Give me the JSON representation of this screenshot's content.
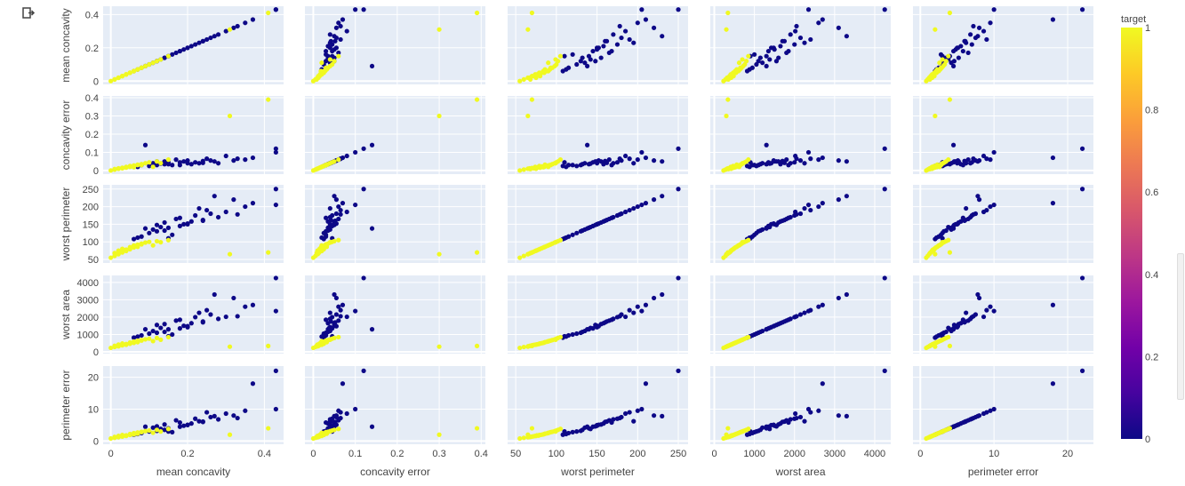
{
  "chart_data": {
    "type": "scatter_matrix",
    "dimensions": [
      "mean concavity",
      "concavity error",
      "worst perimeter",
      "worst area",
      "perimeter error"
    ],
    "axes": {
      "mean concavity": {
        "range": [
          -0.02,
          0.45
        ],
        "ticks": [
          0,
          0.2,
          0.4
        ],
        "tick_labels": [
          "0",
          "0.2",
          "0.4"
        ]
      },
      "concavity error": {
        "range": [
          -0.02,
          0.41
        ],
        "ticks": [
          0,
          0.1,
          0.2,
          0.3,
          0.4
        ],
        "tick_labels": [
          "0",
          "0.1",
          "0.2",
          "0.3",
          "0.4"
        ]
      },
      "worst perimeter": {
        "range": [
          40,
          262
        ],
        "ticks": [
          50,
          100,
          150,
          200,
          250
        ],
        "tick_labels": [
          "50",
          "100",
          "150",
          "200",
          "250"
        ]
      },
      "worst area": {
        "range": [
          -100,
          4400
        ],
        "ticks": [
          0,
          1000,
          2000,
          3000,
          4000
        ],
        "tick_labels": [
          "0",
          "1000",
          "2000",
          "3000",
          "4000"
        ]
      },
      "perimeter error": {
        "range": [
          -1,
          23.5
        ],
        "ticks": [
          0,
          10,
          20
        ],
        "tick_labels": [
          "0",
          "10",
          "20"
        ]
      }
    },
    "color_variable": "target",
    "colorbar": {
      "title": "target",
      "range": [
        0,
        1
      ],
      "ticks": [
        0,
        0.2,
        0.4,
        0.6,
        0.8,
        1
      ],
      "tick_labels": [
        "0",
        "0.2",
        "0.4",
        "0.6",
        "0.8",
        "1"
      ],
      "colorscale": [
        "#0d0887",
        "#46039f",
        "#7201a8",
        "#9c179e",
        "#bd3786",
        "#d8576b",
        "#ed7953",
        "#fb9f3a",
        "#fdca26",
        "#f0f921"
      ]
    },
    "series": [
      {
        "name": "target=0",
        "color": "#0d0887",
        "points": [
          [
            0.3,
            0.08,
            185,
            2020,
            8.6
          ],
          [
            0.24,
            0.052,
            160,
            1700,
            6.0
          ],
          [
            0.2,
            0.04,
            150,
            1420,
            5.0
          ],
          [
            0.18,
            0.045,
            145,
            1350,
            4.5
          ],
          [
            0.15,
            0.035,
            140,
            1300,
            4.0
          ],
          [
            0.12,
            0.03,
            130,
            1100,
            3.2
          ],
          [
            0.1,
            0.025,
            125,
            1050,
            3.0
          ],
          [
            0.14,
            0.05,
            155,
            1600,
            5.2
          ],
          [
            0.17,
            0.06,
            165,
            1800,
            6.5
          ],
          [
            0.22,
            0.045,
            175,
            2000,
            7.0
          ],
          [
            0.26,
            0.055,
            180,
            2150,
            7.5
          ],
          [
            0.28,
            0.04,
            170,
            1900,
            6.8
          ],
          [
            0.16,
            0.03,
            120,
            1000,
            2.8
          ],
          [
            0.08,
            0.03,
            115,
            950,
            2.5
          ],
          [
            0.11,
            0.04,
            135,
            1200,
            4.2
          ],
          [
            0.13,
            0.038,
            142,
            1380,
            3.8
          ],
          [
            0.19,
            0.05,
            150,
            1500,
            4.8
          ],
          [
            0.21,
            0.035,
            158,
            1650,
            5.5
          ],
          [
            0.25,
            0.065,
            190,
            2400,
            9.0
          ],
          [
            0.35,
            0.06,
            200,
            2600,
            9.5
          ],
          [
            0.43,
            0.12,
            250,
            4250,
            22.0
          ],
          [
            0.43,
            0.1,
            205,
            2350,
            10.0
          ],
          [
            0.37,
            0.07,
            210,
            2700,
            18.0
          ],
          [
            0.32,
            0.055,
            220,
            3100,
            8.0
          ],
          [
            0.09,
            0.14,
            138,
            1300,
            4.5
          ],
          [
            0.27,
            0.05,
            230,
            3300,
            7.8
          ],
          [
            0.23,
            0.04,
            195,
            2250,
            6.2
          ],
          [
            0.15,
            0.045,
            110,
            900,
            3.0
          ],
          [
            0.07,
            0.02,
            112,
            880,
            2.2
          ],
          [
            0.18,
            0.03,
            168,
            1850,
            5.8
          ],
          [
            0.12,
            0.05,
            148,
            1550,
            4.6
          ],
          [
            0.2,
            0.055,
            152,
            1480,
            5.1
          ],
          [
            0.06,
            0.025,
            108,
            820,
            2.0
          ],
          [
            0.33,
            0.065,
            178,
            2050,
            7.2
          ],
          [
            0.14,
            0.035,
            132,
            1150,
            3.5
          ],
          [
            0.24,
            0.042,
            162,
            1750,
            6.1
          ]
        ]
      },
      {
        "name": "target=1",
        "color": "#f0f921",
        "points": [
          [
            0.02,
            0.01,
            75,
            420,
            1.6
          ],
          [
            0.03,
            0.015,
            80,
            480,
            1.9
          ],
          [
            0.05,
            0.02,
            85,
            540,
            2.2
          ],
          [
            0.04,
            0.018,
            78,
            450,
            1.7
          ],
          [
            0.06,
            0.025,
            88,
            580,
            2.4
          ],
          [
            0.01,
            0.008,
            68,
            350,
            1.3
          ],
          [
            0.07,
            0.03,
            92,
            640,
            2.7
          ],
          [
            0.08,
            0.035,
            95,
            680,
            2.9
          ],
          [
            0.03,
            0.012,
            72,
            400,
            1.5
          ],
          [
            0.05,
            0.022,
            82,
            500,
            2.0
          ],
          [
            0.09,
            0.04,
            98,
            720,
            3.1
          ],
          [
            0.1,
            0.045,
            100,
            760,
            3.3
          ],
          [
            0.04,
            0.016,
            76,
            430,
            1.8
          ],
          [
            0.06,
            0.028,
            90,
            600,
            2.5
          ],
          [
            0.02,
            0.01,
            65,
            320,
            1.2
          ],
          [
            0.12,
            0.05,
            102,
            800,
            3.5
          ],
          [
            0.01,
            0.005,
            60,
            280,
            1.0
          ],
          [
            0.03,
            0.014,
            70,
            380,
            1.4
          ],
          [
            0.41,
            0.39,
            70,
            340,
            4.0
          ],
          [
            0.31,
            0.3,
            65,
            300,
            2.0
          ],
          [
            0.15,
            0.06,
            105,
            850,
            3.8
          ],
          [
            0.11,
            0.02,
            90,
            620,
            2.6
          ],
          [
            0.07,
            0.032,
            86,
            560,
            2.3
          ],
          [
            0.0,
            0.0,
            55,
            230,
            0.8
          ],
          [
            0.05,
            0.025,
            79,
            470,
            1.9
          ],
          [
            0.08,
            0.03,
            93,
            650,
            2.8
          ],
          [
            0.13,
            0.04,
            99,
            700,
            3.0
          ],
          [
            0.04,
            0.02,
            74,
            410,
            1.6
          ],
          [
            0.02,
            0.012,
            67,
            340,
            1.3
          ],
          [
            0.06,
            0.018,
            84,
            520,
            2.1
          ]
        ]
      }
    ]
  }
}
